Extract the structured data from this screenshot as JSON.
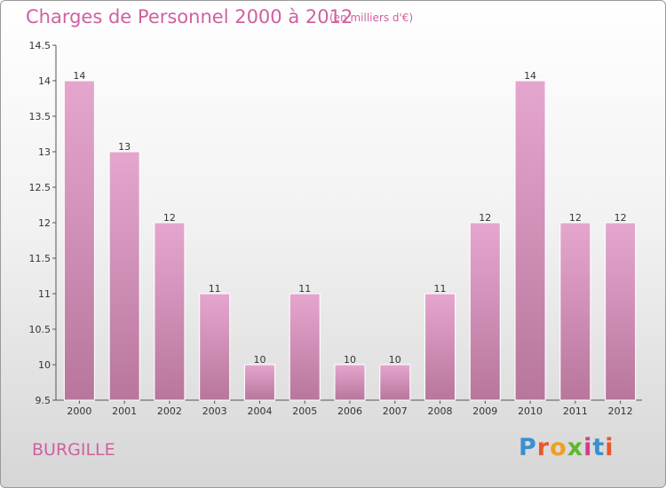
{
  "title": "Charges de Personnel 2000 à 2012",
  "subtitle": "(en milliers d'€)",
  "commune": "BURGILLE",
  "logo": {
    "letters": [
      "P",
      "r",
      "o",
      "x",
      "i",
      "t",
      "i"
    ],
    "colors": [
      "#3a8fd0",
      "#e65a2a",
      "#f0a020",
      "#5cb82e",
      "#d23c8c",
      "#3a8fd0",
      "#e65a2a"
    ]
  },
  "chart_data": {
    "type": "bar",
    "categories": [
      "2000",
      "2001",
      "2002",
      "2003",
      "2004",
      "2005",
      "2006",
      "2007",
      "2008",
      "2009",
      "2010",
      "2011",
      "2012"
    ],
    "values": [
      14,
      13,
      12,
      11,
      10,
      11,
      10,
      10,
      11,
      12,
      14,
      12,
      12
    ],
    "data_labels": [
      "14",
      "13",
      "12",
      "11",
      "10",
      "11",
      "10",
      "10",
      "11",
      "12",
      "14",
      "12",
      "12"
    ],
    "yticks": [
      9.5,
      10,
      10.5,
      11,
      11.5,
      12,
      12.5,
      13,
      13.5,
      14,
      14.5
    ],
    "ytick_labels": [
      "9.5",
      "10",
      "10.5",
      "11",
      "11.5",
      "12",
      "12.5",
      "13",
      "13.5",
      "14",
      "14.5"
    ],
    "ylim": [
      9.5,
      14.5
    ],
    "bar_color_top": "#e5a6ce",
    "bar_color_bottom": "#b8769c",
    "grid": false,
    "legend": "none"
  }
}
